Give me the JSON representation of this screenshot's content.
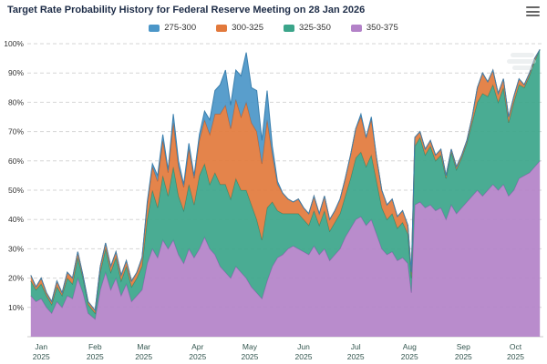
{
  "menu": {
    "icon": "hamburger-menu-icon"
  },
  "chart_data": {
    "type": "area",
    "stacking": "normal",
    "title": "Target Rate Probability History for Federal Reserve Meeting on 28 Jan 2026",
    "xlabel": "",
    "ylabel": "",
    "ylim": [
      0,
      100
    ],
    "grid": "dashed-horizontal",
    "legend_position": "top-center",
    "y_ticks": [
      "10%",
      "20%",
      "30%",
      "40%",
      "50%",
      "60%",
      "70%",
      "80%",
      "90%",
      "100%"
    ],
    "x_ticks": [
      {
        "month": "Jan",
        "year": "2025",
        "x": 8
      },
      {
        "month": "Feb",
        "year": "2025",
        "x": 39
      },
      {
        "month": "Mar",
        "year": "2025",
        "x": 67
      },
      {
        "month": "Apr",
        "year": "2025",
        "x": 98
      },
      {
        "month": "May",
        "year": "2025",
        "x": 128
      },
      {
        "month": "Jun",
        "year": "2025",
        "x": 159
      },
      {
        "month": "Jul",
        "year": "2025",
        "x": 189
      },
      {
        "month": "Aug",
        "year": "2025",
        "x": 220
      },
      {
        "month": "Sep",
        "year": "2025",
        "x": 251
      },
      {
        "month": "Oct",
        "year": "2025",
        "x": 281
      }
    ],
    "x_range": [
      0,
      297
    ],
    "x_unit": "days from 24 Dec 2024",
    "x": [
      2,
      5,
      8,
      11,
      14,
      17,
      20,
      23,
      26,
      29,
      32,
      35,
      39,
      42,
      45,
      48,
      51,
      54,
      57,
      60,
      63,
      66,
      69,
      72,
      75,
      78,
      81,
      84,
      87,
      90,
      93,
      96,
      99,
      102,
      105,
      108,
      111,
      114,
      117,
      120,
      123,
      126,
      129,
      132,
      135,
      138,
      141,
      144,
      147,
      150,
      153,
      156,
      159,
      162,
      165,
      168,
      171,
      174,
      177,
      180,
      183,
      186,
      189,
      192,
      195,
      198,
      201,
      204,
      207,
      210,
      213,
      216,
      219,
      221,
      223,
      226,
      229,
      232,
      235,
      238,
      241,
      244,
      247,
      250,
      253,
      256,
      259,
      262,
      265,
      268,
      271,
      274,
      277,
      280,
      283,
      286,
      289,
      292,
      295
    ],
    "series": [
      {
        "name": "275-300",
        "fill": "#4b96c8",
        "stroke": "#3a7fae",
        "values": [
          0,
          0,
          0,
          0,
          0,
          0,
          0,
          0,
          0,
          0,
          0,
          0,
          0,
          0,
          0,
          0,
          0,
          0,
          0,
          0,
          0,
          0,
          1,
          1,
          2,
          2,
          1,
          3,
          2,
          1,
          2,
          1,
          2,
          3,
          5,
          8,
          10,
          12,
          8,
          10,
          14,
          17,
          12,
          14,
          8,
          10,
          3,
          1,
          0,
          0,
          0,
          0,
          0,
          0,
          0,
          0,
          0,
          0,
          0,
          0,
          0,
          0,
          0,
          1,
          0,
          1,
          0,
          0,
          0,
          0,
          0,
          0,
          0,
          0,
          0,
          0,
          0,
          0,
          0,
          0,
          0,
          0,
          0,
          0,
          0,
          0,
          0,
          0,
          0,
          0,
          0,
          0,
          0,
          0,
          0,
          0,
          0,
          0,
          0
        ]
      },
      {
        "name": "300-325",
        "fill": "#e2793c",
        "stroke": "#c65f27",
        "values": [
          2,
          1,
          2,
          1,
          1,
          2,
          1,
          2,
          2,
          2,
          1,
          1,
          1,
          2,
          2,
          2,
          2,
          2,
          2,
          2,
          2,
          3,
          5,
          8,
          9,
          12,
          8,
          15,
          10,
          8,
          12,
          9,
          12,
          15,
          17,
          20,
          24,
          27,
          24,
          27,
          25,
          30,
          28,
          30,
          26,
          30,
          16,
          9,
          7,
          5,
          4,
          5,
          4,
          4,
          5,
          4,
          5,
          4,
          4,
          5,
          6,
          8,
          10,
          12,
          10,
          12,
          8,
          6,
          5,
          5,
          4,
          4,
          3,
          2,
          3,
          2,
          2,
          2,
          2,
          2,
          1,
          1,
          1,
          1,
          1,
          2,
          5,
          7,
          5,
          5,
          3,
          3,
          2,
          2,
          2,
          1,
          1,
          1,
          0
        ]
      },
      {
        "name": "325-350",
        "fill": "#3ba58a",
        "stroke": "#2b8a70",
        "values": [
          5,
          4,
          5,
          4,
          3,
          5,
          4,
          6,
          5,
          7,
          5,
          3,
          2,
          6,
          8,
          6,
          7,
          5,
          6,
          5,
          6,
          8,
          15,
          20,
          17,
          22,
          18,
          25,
          20,
          18,
          22,
          18,
          25,
          25,
          22,
          28,
          28,
          30,
          27,
          30,
          28,
          30,
          28,
          25,
          20,
          25,
          22,
          16,
          14,
          12,
          11,
          12,
          11,
          10,
          12,
          10,
          13,
          10,
          11,
          12,
          14,
          17,
          21,
          22,
          20,
          22,
          18,
          14,
          12,
          13,
          11,
          12,
          10,
          5,
          20,
          22,
          18,
          20,
          17,
          18,
          14,
          18,
          15,
          17,
          20,
          25,
          30,
          35,
          32,
          34,
          30,
          33,
          25,
          30,
          32,
          30,
          33,
          36,
          38
        ]
      },
      {
        "name": "350-375",
        "fill": "#b382c8",
        "stroke": "#9b63b6",
        "values": [
          14,
          12,
          13,
          10,
          8,
          12,
          10,
          14,
          13,
          20,
          15,
          8,
          6,
          16,
          22,
          16,
          20,
          14,
          18,
          12,
          14,
          16,
          25,
          30,
          27,
          33,
          30,
          33,
          28,
          25,
          30,
          27,
          30,
          34,
          30,
          28,
          24,
          22,
          20,
          24,
          22,
          20,
          17,
          15,
          13,
          19,
          24,
          27,
          28,
          30,
          31,
          30,
          29,
          28,
          31,
          28,
          30,
          26,
          28,
          30,
          34,
          37,
          40,
          41,
          38,
          40,
          35,
          30,
          28,
          29,
          26,
          27,
          25,
          15,
          45,
          46,
          44,
          45,
          43,
          44,
          40,
          45,
          42,
          44,
          46,
          48,
          50,
          48,
          50,
          52,
          50,
          52,
          48,
          50,
          54,
          55,
          56,
          58,
          60
        ]
      }
    ],
    "stack_order_bottom_to_top": [
      "350-375",
      "325-350",
      "300-325",
      "275-300"
    ]
  }
}
